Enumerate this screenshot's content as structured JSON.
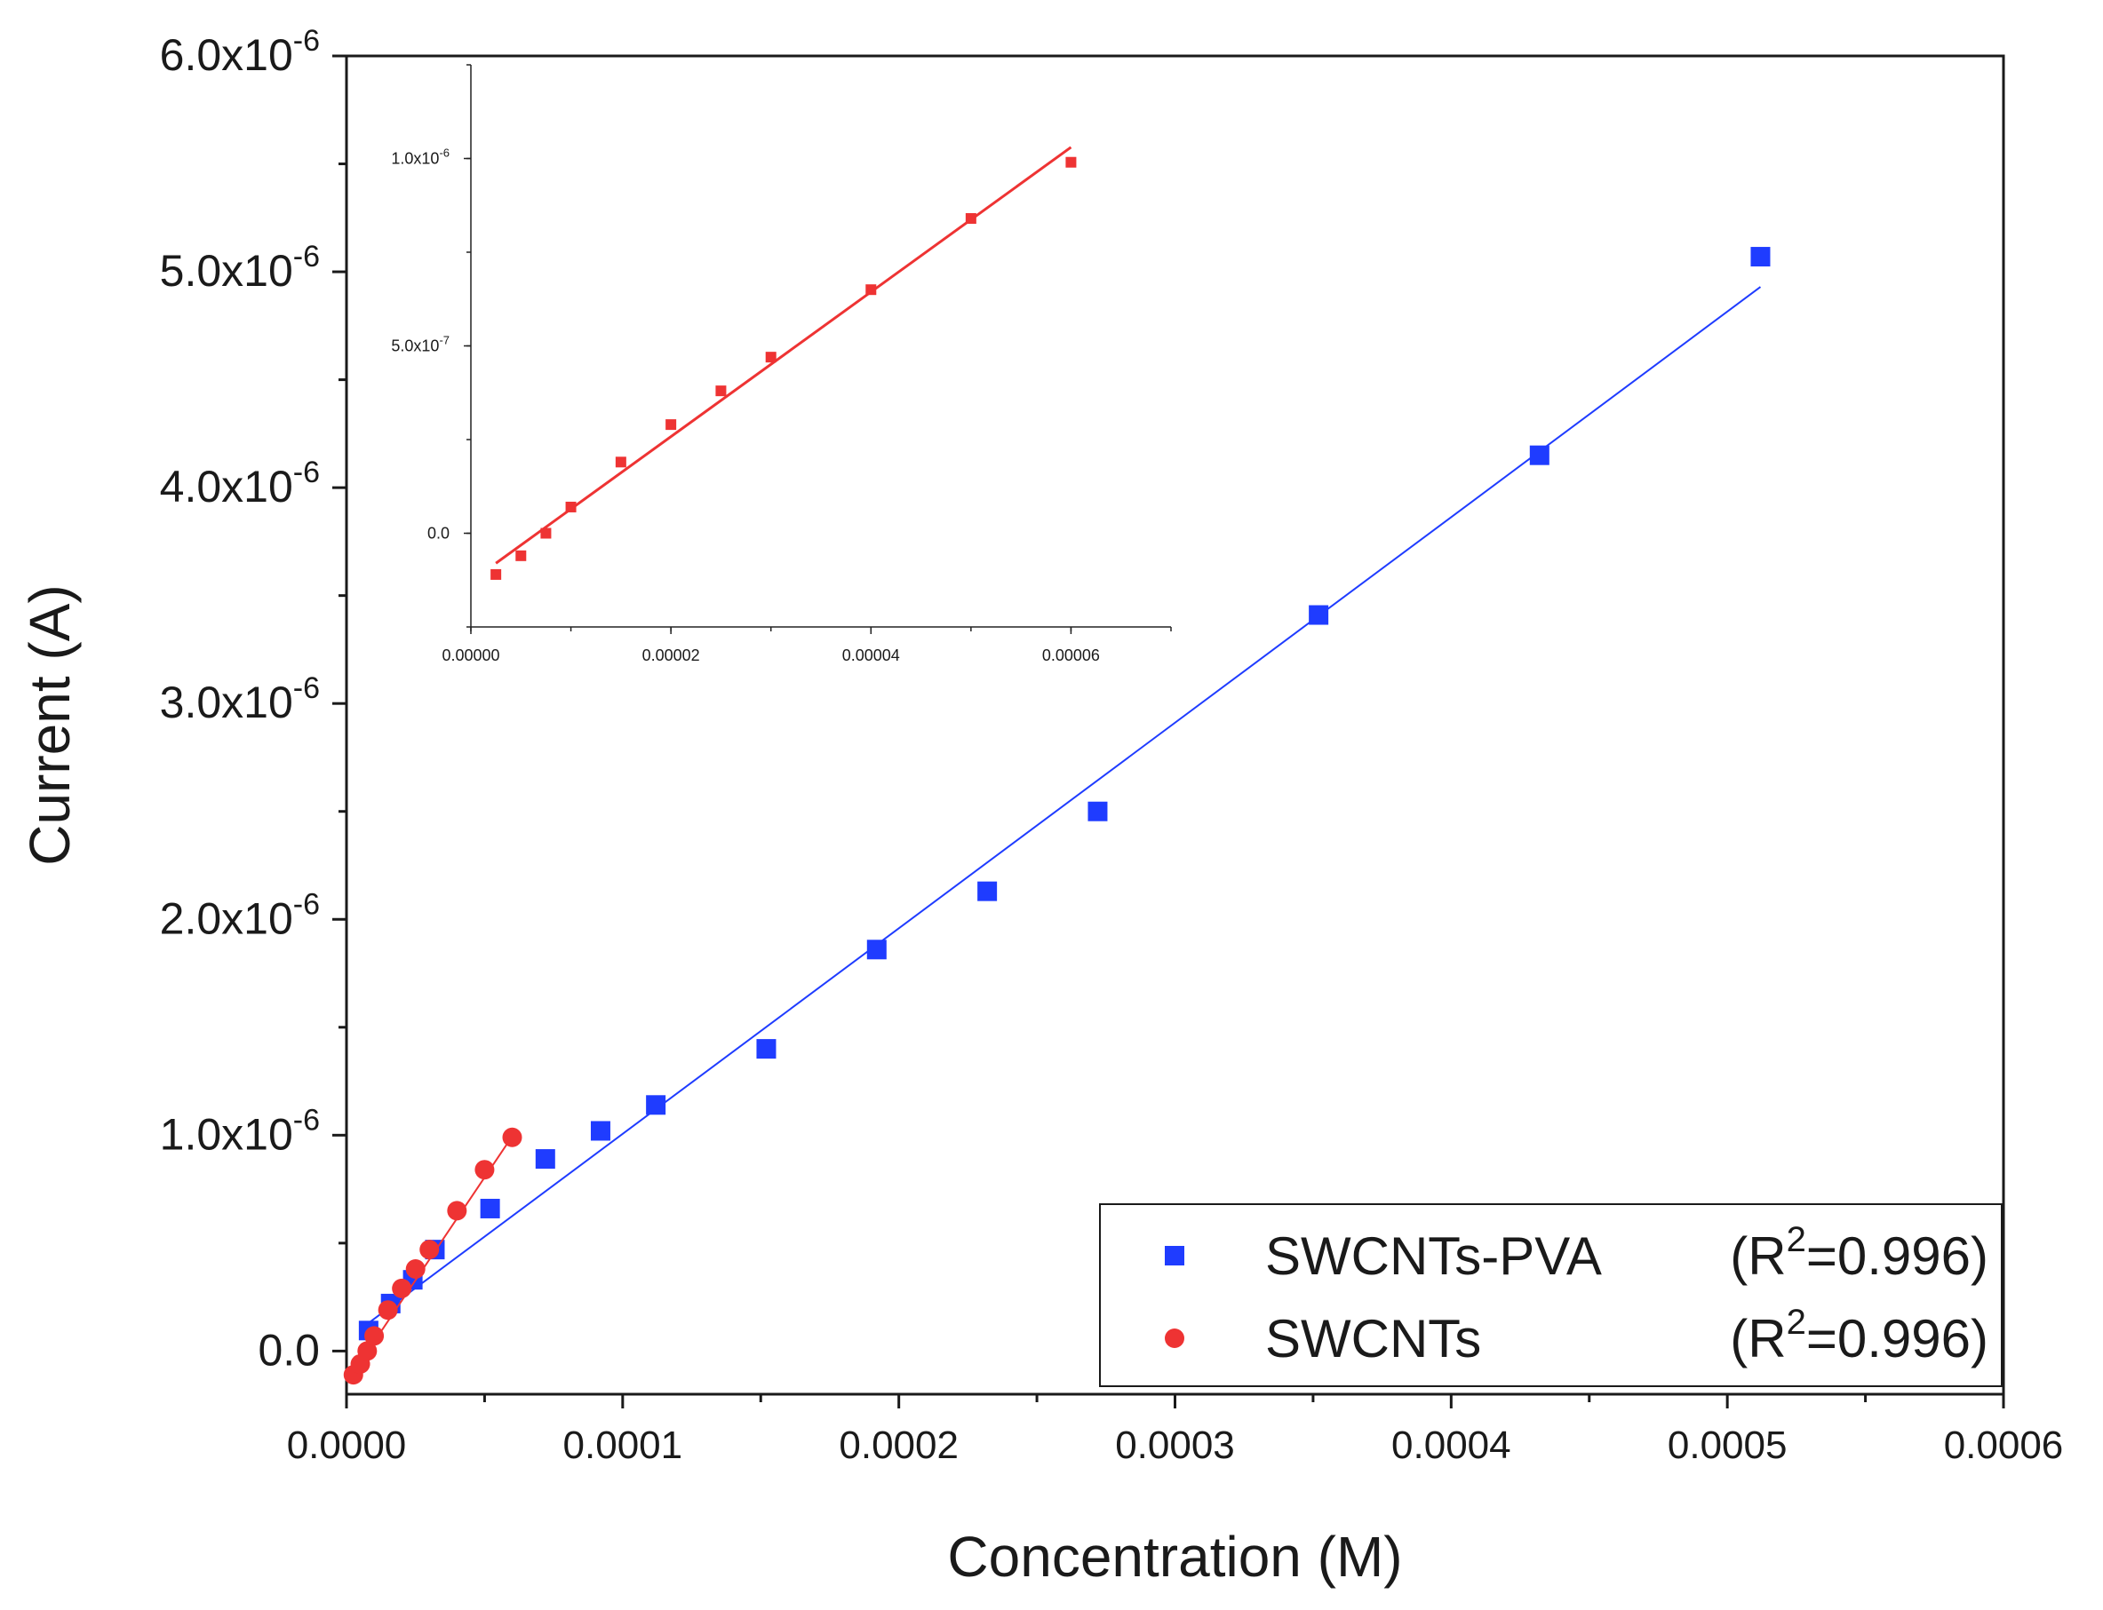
{
  "chart_data": [
    {
      "type": "scatter",
      "name": "main",
      "xlabel": "Concentration (M)",
      "ylabel": "Current (A)",
      "xlim": [
        0,
        0.0006
      ],
      "ylim": [
        -2e-07,
        6e-06
      ],
      "xticks": [
        {
          "value": 0.0,
          "label": "0.0000"
        },
        {
          "value": 0.0001,
          "label": "0.0001"
        },
        {
          "value": 0.0002,
          "label": "0.0002"
        },
        {
          "value": 0.0003,
          "label": "0.0003"
        },
        {
          "value": 0.0004,
          "label": "0.0004"
        },
        {
          "value": 0.0005,
          "label": "0.0005"
        },
        {
          "value": 0.0006,
          "label": "0.0006"
        }
      ],
      "yticks": [
        {
          "value": 0.0,
          "label": "0.0"
        },
        {
          "value": 1e-06,
          "mantissa": "1.0x10",
          "exp": "-6"
        },
        {
          "value": 2e-06,
          "mantissa": "2.0x10",
          "exp": "-6"
        },
        {
          "value": 3e-06,
          "mantissa": "3.0x10",
          "exp": "-6"
        },
        {
          "value": 4e-06,
          "mantissa": "4.0x10",
          "exp": "-6"
        },
        {
          "value": 5e-06,
          "mantissa": "5.0x10",
          "exp": "-6"
        },
        {
          "value": 6e-06,
          "mantissa": "6.0x10",
          "exp": "-6"
        }
      ],
      "series": [
        {
          "name": "SWCNTs-PVA",
          "color": "#1f3cff",
          "marker": "square",
          "x": [
            8e-06,
            1.6e-05,
            2.4e-05,
            3.2e-05,
            5.2e-05,
            7.2e-05,
            9.2e-05,
            0.000112,
            0.000152,
            0.000192,
            0.000232,
            0.000272,
            0.000352,
            0.000432,
            0.000512
          ],
          "y": [
            9.5e-08,
            2.2e-07,
            3.3e-07,
            4.7e-07,
            6.6e-07,
            8.9e-07,
            1.02e-06,
            1.14e-06,
            1.4e-06,
            1.86e-06,
            2.13e-06,
            2.5e-06,
            3.41e-06,
            4.15e-06,
            5.07e-06
          ],
          "fit": {
            "x": [
              8e-06,
              0.000512
            ],
            "y": [
              1.3e-07,
              4.93e-06
            ]
          }
        },
        {
          "name": "SWCNTs",
          "color": "#ee3333",
          "marker": "circle",
          "x": [
            2.5e-06,
            5e-06,
            7.5e-06,
            1e-05,
            1.5e-05,
            2e-05,
            2.5e-05,
            3e-05,
            4e-05,
            5e-05,
            6e-05
          ],
          "y": [
            -1.1e-07,
            -6e-08,
            0.0,
            7e-08,
            1.9e-07,
            2.9e-07,
            3.8e-07,
            4.7e-07,
            6.5e-07,
            8.4e-07,
            9.9e-07
          ],
          "fit": {
            "x": [
              2.5e-06,
              6e-05
            ],
            "y": [
              -1e-07,
              9.95e-07
            ]
          }
        }
      ],
      "legend": {
        "position": "bottom-right",
        "entries": [
          {
            "label": "SWCNTs-PVA",
            "r2_prefix": "(R",
            "r2_sup": "2",
            "r2_value": "=0.996)"
          },
          {
            "label": "SWCNTs",
            "r2_prefix": "(R",
            "r2_sup": "2",
            "r2_value": "=0.996)"
          }
        ]
      }
    },
    {
      "type": "scatter",
      "name": "inset",
      "xlabel": "",
      "ylabel": "",
      "xlim": [
        0,
        7e-05
      ],
      "ylim": [
        -2.5e-07,
        1.25e-06
      ],
      "xticks": [
        {
          "value": 0.0,
          "label": "0.00000"
        },
        {
          "value": 2e-05,
          "label": "0.00002"
        },
        {
          "value": 4e-05,
          "label": "0.00004"
        },
        {
          "value": 6e-05,
          "label": "0.00006"
        }
      ],
      "yticks": [
        {
          "value": 0.0,
          "label": "0.0"
        },
        {
          "value": 5e-07,
          "mantissa": "5.0x10",
          "exp": "-7"
        },
        {
          "value": 1e-06,
          "mantissa": "1.0x10",
          "exp": "-6"
        }
      ],
      "series": [
        {
          "name": "SWCNTs",
          "color": "#ee3333",
          "marker": "square",
          "x": [
            2.5e-06,
            5e-06,
            7.5e-06,
            1e-05,
            1.5e-05,
            2e-05,
            2.5e-05,
            3e-05,
            4e-05,
            5e-05,
            6e-05
          ],
          "y": [
            -1.1e-07,
            -6e-08,
            0.0,
            7e-08,
            1.9e-07,
            2.9e-07,
            3.8e-07,
            4.7e-07,
            6.5e-07,
            8.4e-07,
            9.9e-07
          ],
          "fit": {
            "x": [
              2.5e-06,
              6e-05
            ],
            "y": [
              -8e-08,
              1.03e-06
            ]
          }
        }
      ]
    }
  ]
}
